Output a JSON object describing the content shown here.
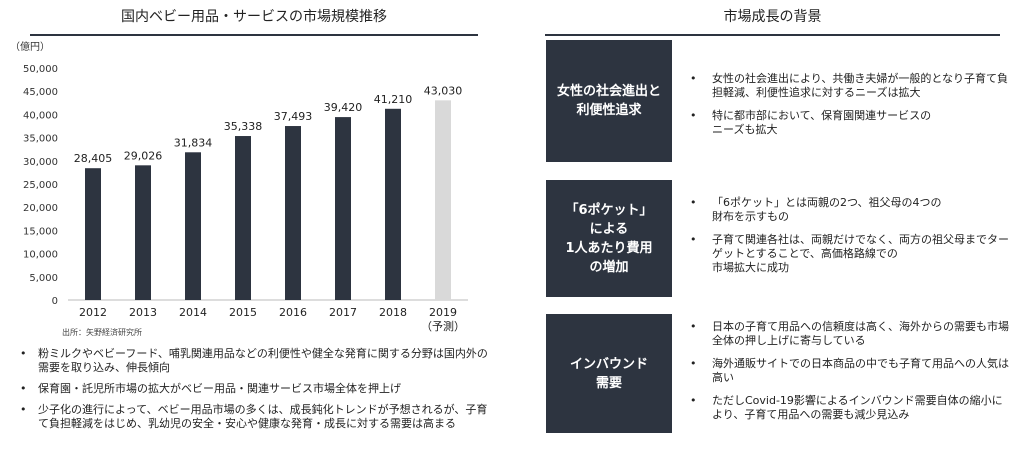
{
  "left_title": "国内ベビー用品・サービスの市場規模推移",
  "right_title": "市場成長の背景",
  "source": "出所：矢野経済研究所",
  "bullets": [
    "粉ミルクやベビーフード、哺乳関連用品などの利便性や健全な発育に関する分野は国内外の需要を取り込み、伸長傾向",
    "保育園・託児所市場の拡大がベビー用品・関連サービス市場全体を押上げ",
    "少子化の進行によって、ベビー用品市場の多くは、成長鈍化トレンドが予想されるが、子育て負担軽減をはじめ、乳幼児の安全・安心や健康な発育・成長に対する需要は高まる"
  ],
  "factors": [
    {
      "label": "女性の社会進出と\n利便性追求",
      "points": [
        "女性の社会進出により、共働き夫婦が一般的となり子育て負担軽減、利便性追求に対するニーズは拡大",
        "特に都市部において、保育園関連サービスの\nニーズも拡大"
      ]
    },
    {
      "label": "「6ポケット」\nによる\n1人あたり費用\nの増加",
      "points": [
        "「6ポケット」とは両親の2つ、祖父母の4つの\n財布を示すもの",
        "子育て関連各社は、両親だけでなく、両方の祖父母までターゲットとすることで、高価格路線での\n市場拡大に成功"
      ]
    },
    {
      "label": "インバウンド\n需要",
      "points": [
        "日本の子育て用品への信頼度は高く、海外からの需要も市場全体の押し上げに寄与している",
        "海外通販サイトでの日本商品の中でも子育て用品への人気は高い",
        "ただしCovid-19影響によるインバウンド需要自体の縮小により、子育て用品への需要も減少見込み"
      ]
    }
  ],
  "colors": {
    "bar": "#2d3440",
    "forecast_bar": "#d9d9d9",
    "accent": "#2d3440"
  },
  "chart_data": {
    "type": "bar",
    "ylabel": "（億円）",
    "ylim": [
      0,
      50000
    ],
    "yticks": [
      0,
      5000,
      10000,
      15000,
      20000,
      25000,
      30000,
      35000,
      40000,
      45000,
      50000
    ],
    "ytick_labels": [
      "0",
      "5,000",
      "10,000",
      "15,000",
      "20,000",
      "25,000",
      "30,000",
      "35,000",
      "40,000",
      "45,000",
      "50,000"
    ],
    "categories": [
      "2012",
      "2013",
      "2014",
      "2015",
      "2016",
      "2017",
      "2018",
      "2019"
    ],
    "category_sublabels": [
      "",
      "",
      "",
      "",
      "",
      "",
      "",
      "（予測）"
    ],
    "values": [
      28405,
      29026,
      31834,
      35338,
      37493,
      39420,
      41210,
      43030
    ],
    "value_labels": [
      "28,405",
      "29,026",
      "31,834",
      "35,338",
      "37,493",
      "39,420",
      "41,210",
      "43,030"
    ],
    "forecast": [
      false,
      false,
      false,
      false,
      false,
      false,
      false,
      true
    ],
    "grid": false
  }
}
